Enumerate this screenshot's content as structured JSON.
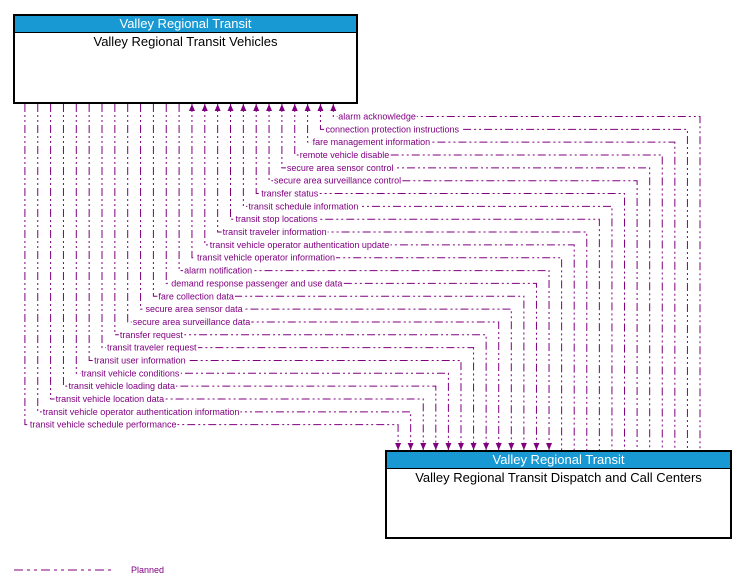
{
  "boxes": {
    "top": {
      "header": "Valley Regional Transit",
      "title": "Valley Regional Transit Vehicles"
    },
    "bottom": {
      "header": "Valley Regional Transit",
      "title": "Valley Regional Transit Dispatch and Call Centers"
    }
  },
  "colors": {
    "header_bg": "#1899D4",
    "header_text": "#FFFFFF",
    "flow_line": "#800080",
    "box_border": "#000000"
  },
  "legend": {
    "items": [
      {
        "label": "Planned",
        "line_style": "dash-dot-dot"
      }
    ]
  },
  "flows": [
    {
      "label": "alarm acknowledge",
      "direction": "to-vehicles"
    },
    {
      "label": "connection protection instructions",
      "direction": "to-vehicles"
    },
    {
      "label": "fare management information",
      "direction": "to-vehicles"
    },
    {
      "label": "remote vehicle disable",
      "direction": "to-vehicles"
    },
    {
      "label": "secure area sensor control",
      "direction": "to-vehicles"
    },
    {
      "label": "secure area surveillance control",
      "direction": "to-vehicles"
    },
    {
      "label": "transfer status",
      "direction": "to-vehicles"
    },
    {
      "label": "transit schedule information",
      "direction": "to-vehicles"
    },
    {
      "label": "transit stop locations",
      "direction": "to-vehicles"
    },
    {
      "label": "transit traveler information",
      "direction": "to-vehicles"
    },
    {
      "label": "transit vehicle operator authentication update",
      "direction": "to-vehicles"
    },
    {
      "label": "transit vehicle operator information",
      "direction": "to-vehicles"
    },
    {
      "label": "alarm notification",
      "direction": "to-dispatch"
    },
    {
      "label": "demand response passenger and use data",
      "direction": "to-dispatch"
    },
    {
      "label": "fare collection data",
      "direction": "to-dispatch"
    },
    {
      "label": "secure area sensor data",
      "direction": "to-dispatch"
    },
    {
      "label": "secure area surveillance data",
      "direction": "to-dispatch"
    },
    {
      "label": "transfer request",
      "direction": "to-dispatch"
    },
    {
      "label": "transit traveler request",
      "direction": "to-dispatch"
    },
    {
      "label": "transit user information",
      "direction": "to-dispatch"
    },
    {
      "label": "transit vehicle conditions",
      "direction": "to-dispatch"
    },
    {
      "label": "transit vehicle loading data",
      "direction": "to-dispatch"
    },
    {
      "label": "transit vehicle location data",
      "direction": "to-dispatch"
    },
    {
      "label": "transit vehicle operator authentication information",
      "direction": "to-dispatch"
    },
    {
      "label": "transit vehicle schedule performance",
      "direction": "to-dispatch"
    }
  ]
}
